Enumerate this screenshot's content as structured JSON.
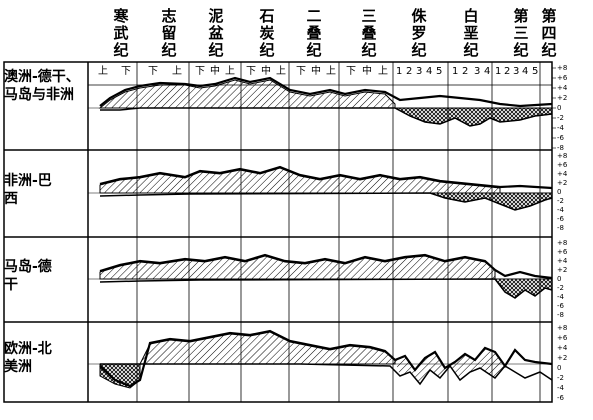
{
  "periods": [
    {
      "id": "cambrian",
      "label": "寒武纪"
    },
    {
      "id": "silurian",
      "label": "志留纪"
    },
    {
      "id": "devonian",
      "label": "泥盆纪"
    },
    {
      "id": "carboniferous",
      "label": "石炭纪"
    },
    {
      "id": "permian",
      "label": "二叠纪"
    },
    {
      "id": "triassic",
      "label": "三叠纪"
    },
    {
      "id": "jurassic",
      "label": "侏罗纪"
    },
    {
      "id": "cretaceous",
      "label": "白垩纪"
    },
    {
      "id": "tertiary",
      "label": "第三纪"
    },
    {
      "id": "quaternary",
      "label": "第四纪"
    }
  ],
  "subdivisions": [
    "上",
    "下",
    "下",
    "上",
    "下",
    "中",
    "上",
    "下",
    "中",
    "上",
    "下",
    "中",
    "上",
    "下",
    "中",
    "上",
    "1",
    "2",
    "3",
    "4",
    "5",
    "1",
    "2",
    "3",
    "4",
    "1",
    "2",
    "3",
    "4",
    "5"
  ],
  "regions": [
    {
      "id": "australia-deccan-madagascar-africa",
      "label": "澳洲-德干、马岛与非洲"
    },
    {
      "id": "africa-brazil",
      "label": "非洲-巴西"
    },
    {
      "id": "madagascar-deccan",
      "label": "马岛-德干"
    },
    {
      "id": "europe-north-america",
      "label": "欧洲-北美洲"
    }
  ],
  "scale_labels": [
    "+8",
    "+6",
    "+4",
    "+2",
    "0",
    "-2",
    "-4",
    "-6",
    "-8"
  ],
  "scale_labels_last": [
    "+8",
    "+6",
    "+4",
    "+2",
    "0",
    "-2",
    "-4",
    "-6"
  ]
}
